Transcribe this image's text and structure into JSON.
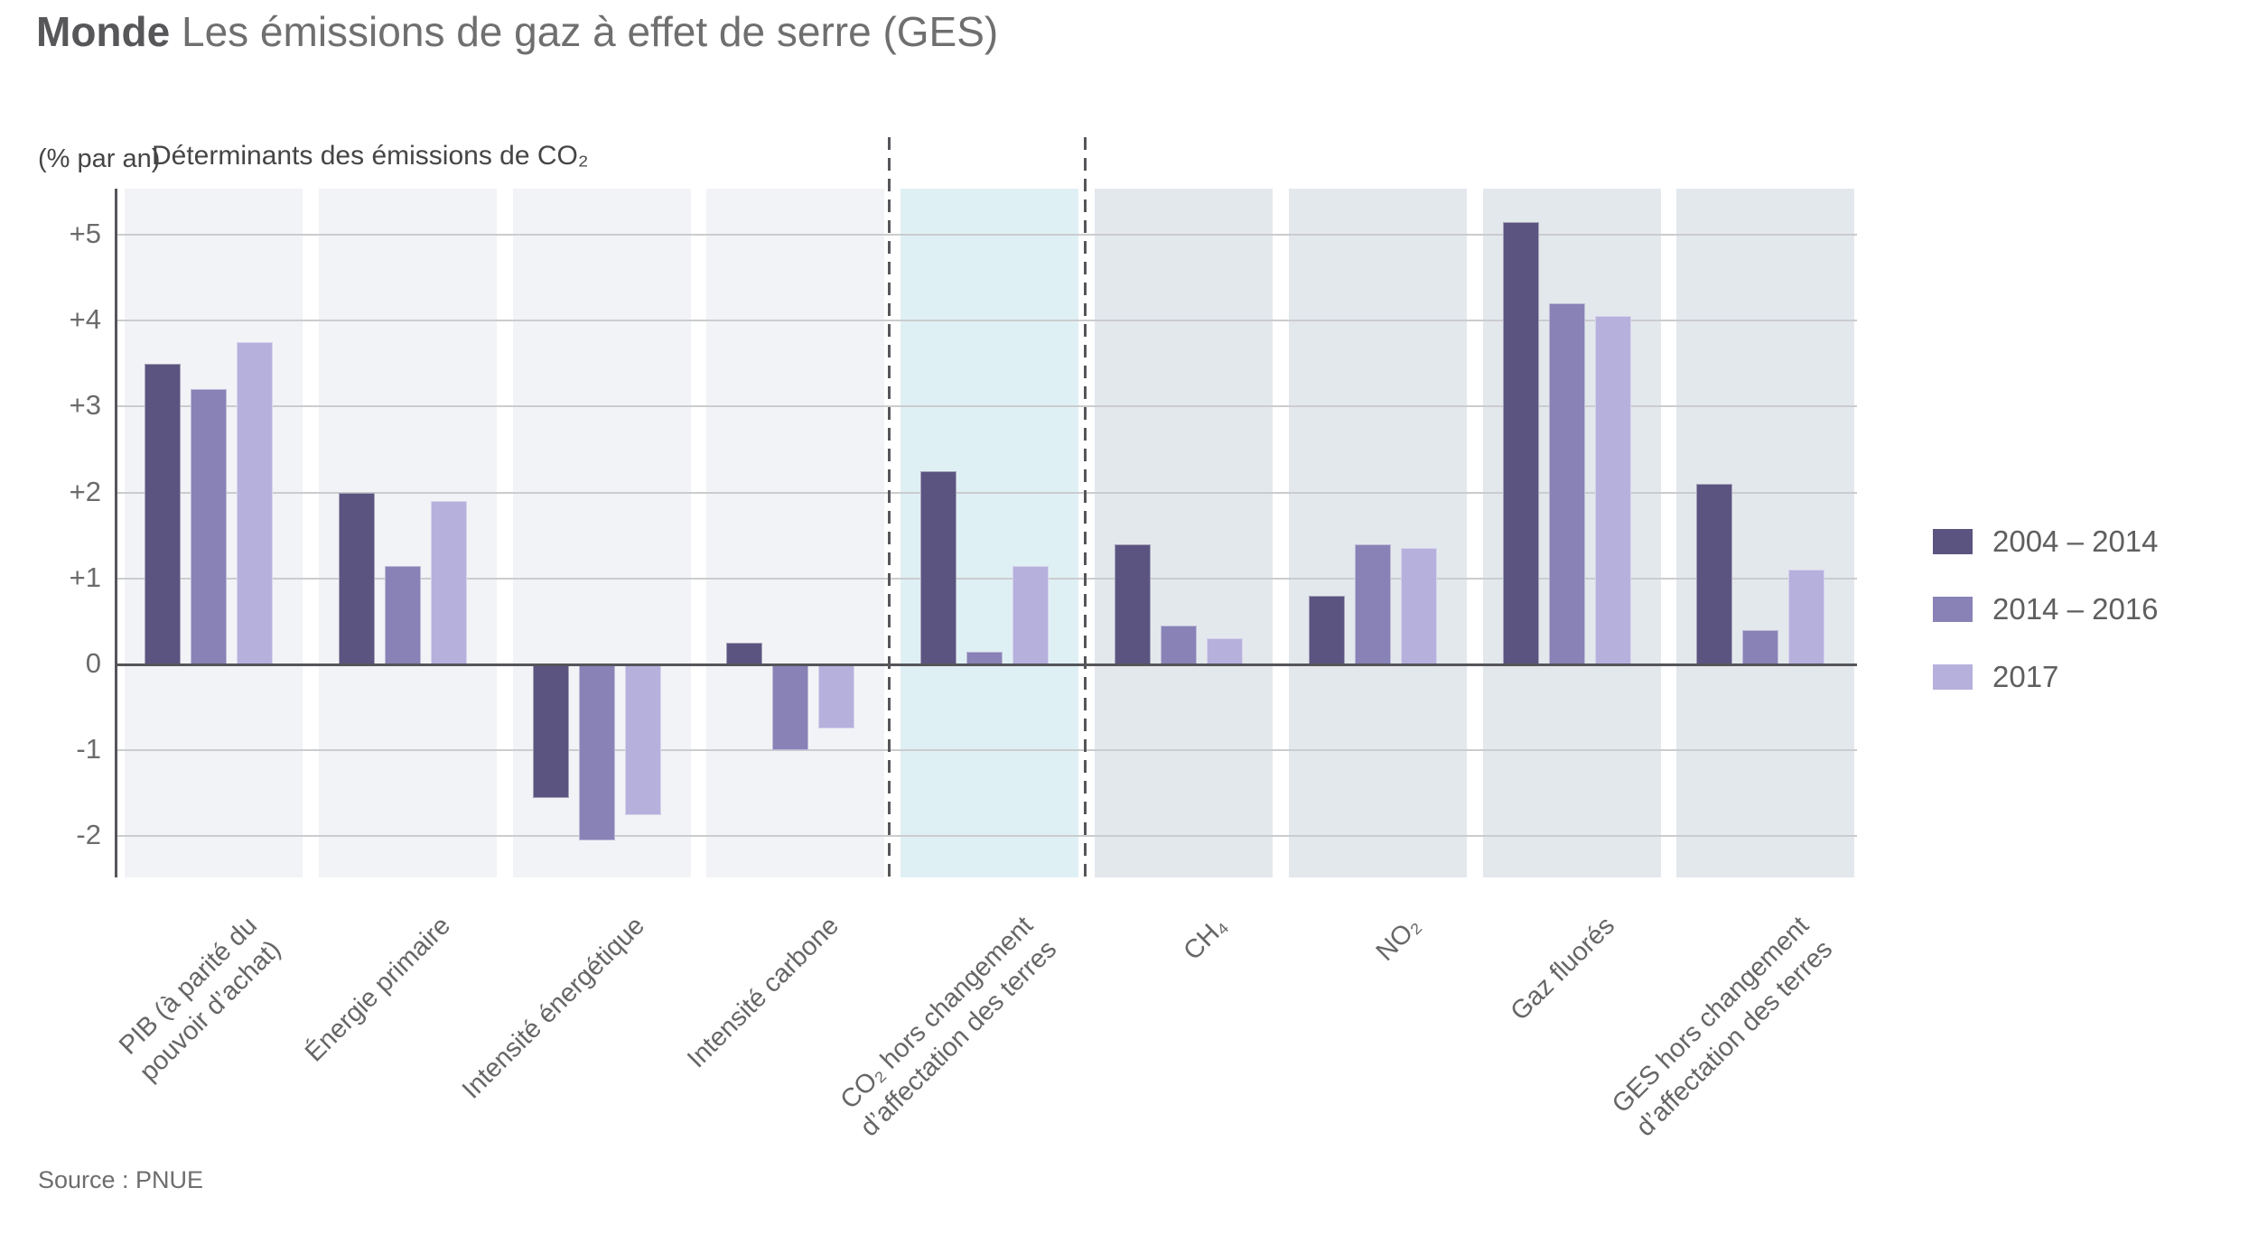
{
  "page": {
    "title_bold": "Monde",
    "title_rest": "Les émissions de gaz à effet de serre (GES)",
    "unit_label": "(% par an)",
    "section_label": "Déterminants des émissions de CO₂",
    "source": "Source : PNUE"
  },
  "chart_data": {
    "type": "bar",
    "title": "Monde — Les émissions de gaz à effet de serre (GES)",
    "ylabel": "% par an",
    "ylim": [
      -2.5,
      5.55
    ],
    "yticks": [
      "+5",
      "+4",
      "+3",
      "+2",
      "+1",
      "0",
      "-1",
      "-2"
    ],
    "ytick_values": [
      5,
      4,
      3,
      2,
      1,
      0,
      -1,
      -2
    ],
    "grid": true,
    "legend_position": "right",
    "panel_colors": {
      "left": "#f2f3f6",
      "highlight": "#dff0f4",
      "right": "#e3e8ed"
    },
    "categories": [
      {
        "label": "PIB (à parité du\npouvoir d’achat)",
        "zone": "left"
      },
      {
        "label": "Énergie primaire",
        "zone": "left"
      },
      {
        "label": "Intensité énergétique",
        "zone": "left"
      },
      {
        "label": "Intensité carbone",
        "zone": "left"
      },
      {
        "label": "CO₂ hors changement\nd’affectation des terres",
        "zone": "highlight"
      },
      {
        "label": "CH₄",
        "zone": "right"
      },
      {
        "label": "NO₂",
        "zone": "right"
      },
      {
        "label": "Gaz fluorés",
        "zone": "right"
      },
      {
        "label": "GES hors changement\nd’affectation des terres",
        "zone": "right"
      }
    ],
    "series": [
      {
        "name": "2004 – 2014",
        "color": "#5b5480",
        "values": [
          3.5,
          2.0,
          -1.55,
          0.25,
          2.25,
          1.4,
          0.8,
          5.15,
          2.1
        ]
      },
      {
        "name": "2014 – 2016",
        "color": "#8882b7",
        "values": [
          3.2,
          1.15,
          -2.05,
          -1.0,
          0.15,
          0.45,
          1.4,
          4.2,
          0.4
        ]
      },
      {
        "name": "2017",
        "color": "#b6b0dd",
        "values": [
          3.75,
          1.9,
          -1.75,
          -0.75,
          1.15,
          0.3,
          1.35,
          4.05,
          1.1
        ]
      }
    ]
  }
}
